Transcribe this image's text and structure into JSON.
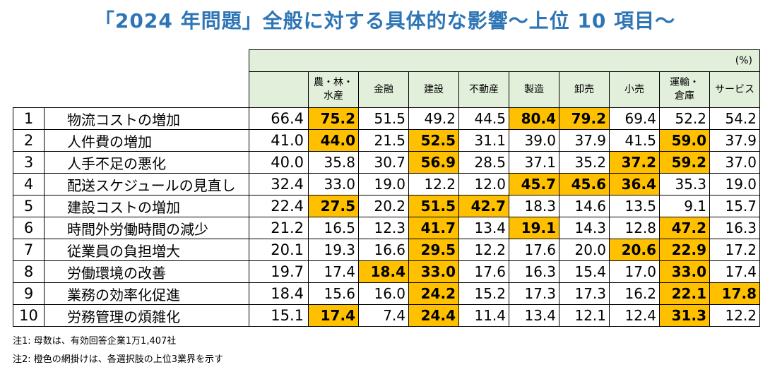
{
  "title": "「2024 年問題」全般に対する具体的な影響〜上位 10 項目〜",
  "unit": "(%)",
  "industries": [
    "農・林・\n水産",
    "金融",
    "建設",
    "不動産",
    "製造",
    "卸売",
    "小売",
    "運輸・\n倉庫",
    "サービス"
  ],
  "rows": [
    {
      "rank": "1",
      "item": "物流コストの増加",
      "all": "66.4",
      "values": [
        "75.2",
        "51.5",
        "49.2",
        "44.5",
        "80.4",
        "79.2",
        "69.4",
        "52.2",
        "54.2"
      ],
      "highlight": [
        true,
        false,
        false,
        false,
        true,
        true,
        false,
        false,
        false
      ]
    },
    {
      "rank": "2",
      "item": "人件費の増加",
      "all": "41.0",
      "values": [
        "44.0",
        "21.5",
        "52.5",
        "31.1",
        "39.0",
        "37.9",
        "41.5",
        "59.0",
        "37.9"
      ],
      "highlight": [
        true,
        false,
        true,
        false,
        false,
        false,
        false,
        true,
        false
      ]
    },
    {
      "rank": "3",
      "item": "人手不足の悪化",
      "all": "40.0",
      "values": [
        "35.8",
        "30.7",
        "56.9",
        "28.5",
        "37.1",
        "35.2",
        "37.2",
        "59.2",
        "37.0"
      ],
      "highlight": [
        false,
        false,
        true,
        false,
        false,
        false,
        true,
        true,
        false
      ]
    },
    {
      "rank": "4",
      "item": "配送スケジュールの見直し",
      "all": "32.4",
      "values": [
        "33.0",
        "19.0",
        "12.2",
        "12.0",
        "45.7",
        "45.6",
        "36.4",
        "35.3",
        "19.0"
      ],
      "highlight": [
        false,
        false,
        false,
        false,
        true,
        true,
        true,
        false,
        false
      ]
    },
    {
      "rank": "5",
      "item": "建設コストの増加",
      "all": "22.4",
      "values": [
        "27.5",
        "20.2",
        "51.5",
        "42.7",
        "18.3",
        "14.6",
        "13.5",
        "9.1",
        "15.7"
      ],
      "highlight": [
        true,
        false,
        true,
        true,
        false,
        false,
        false,
        false,
        false
      ]
    },
    {
      "rank": "6",
      "item": "時間外労働時間の減少",
      "all": "21.2",
      "values": [
        "16.5",
        "12.3",
        "41.7",
        "13.4",
        "19.1",
        "14.3",
        "12.8",
        "47.2",
        "16.3"
      ],
      "highlight": [
        false,
        false,
        true,
        false,
        true,
        false,
        false,
        true,
        false
      ]
    },
    {
      "rank": "7",
      "item": "従業員の負担増大",
      "all": "20.1",
      "values": [
        "19.3",
        "16.6",
        "29.5",
        "12.2",
        "17.6",
        "20.0",
        "20.6",
        "22.9",
        "17.2"
      ],
      "highlight": [
        false,
        false,
        true,
        false,
        false,
        false,
        true,
        true,
        false
      ]
    },
    {
      "rank": "8",
      "item": "労働環境の改善",
      "all": "19.7",
      "values": [
        "17.4",
        "18.4",
        "33.0",
        "17.6",
        "16.3",
        "15.4",
        "17.0",
        "33.0",
        "17.4"
      ],
      "highlight": [
        false,
        true,
        true,
        false,
        false,
        false,
        false,
        true,
        false
      ]
    },
    {
      "rank": "9",
      "item": "業務の効率化促進",
      "all": "18.4",
      "values": [
        "15.6",
        "16.0",
        "24.2",
        "15.2",
        "17.3",
        "17.3",
        "16.2",
        "22.1",
        "17.8"
      ],
      "highlight": [
        false,
        false,
        true,
        false,
        false,
        false,
        false,
        true,
        true
      ]
    },
    {
      "rank": "10",
      "item": "労務管理の煩雑化",
      "all": "15.1",
      "values": [
        "17.4",
        "7.4",
        "24.4",
        "11.4",
        "13.4",
        "12.1",
        "12.4",
        "31.3",
        "12.2"
      ],
      "highlight": [
        true,
        false,
        true,
        false,
        false,
        false,
        false,
        true,
        false
      ]
    }
  ],
  "notes": [
    "注1: 母数は、有効回答企業1万1,407社",
    "注2: 橙色の網掛けは、各選択肢の上位3業界を示す"
  ],
  "colors": {
    "title": "#2E75B6",
    "highlight": "#FFC000",
    "header_bg": "#E2EFDA"
  }
}
